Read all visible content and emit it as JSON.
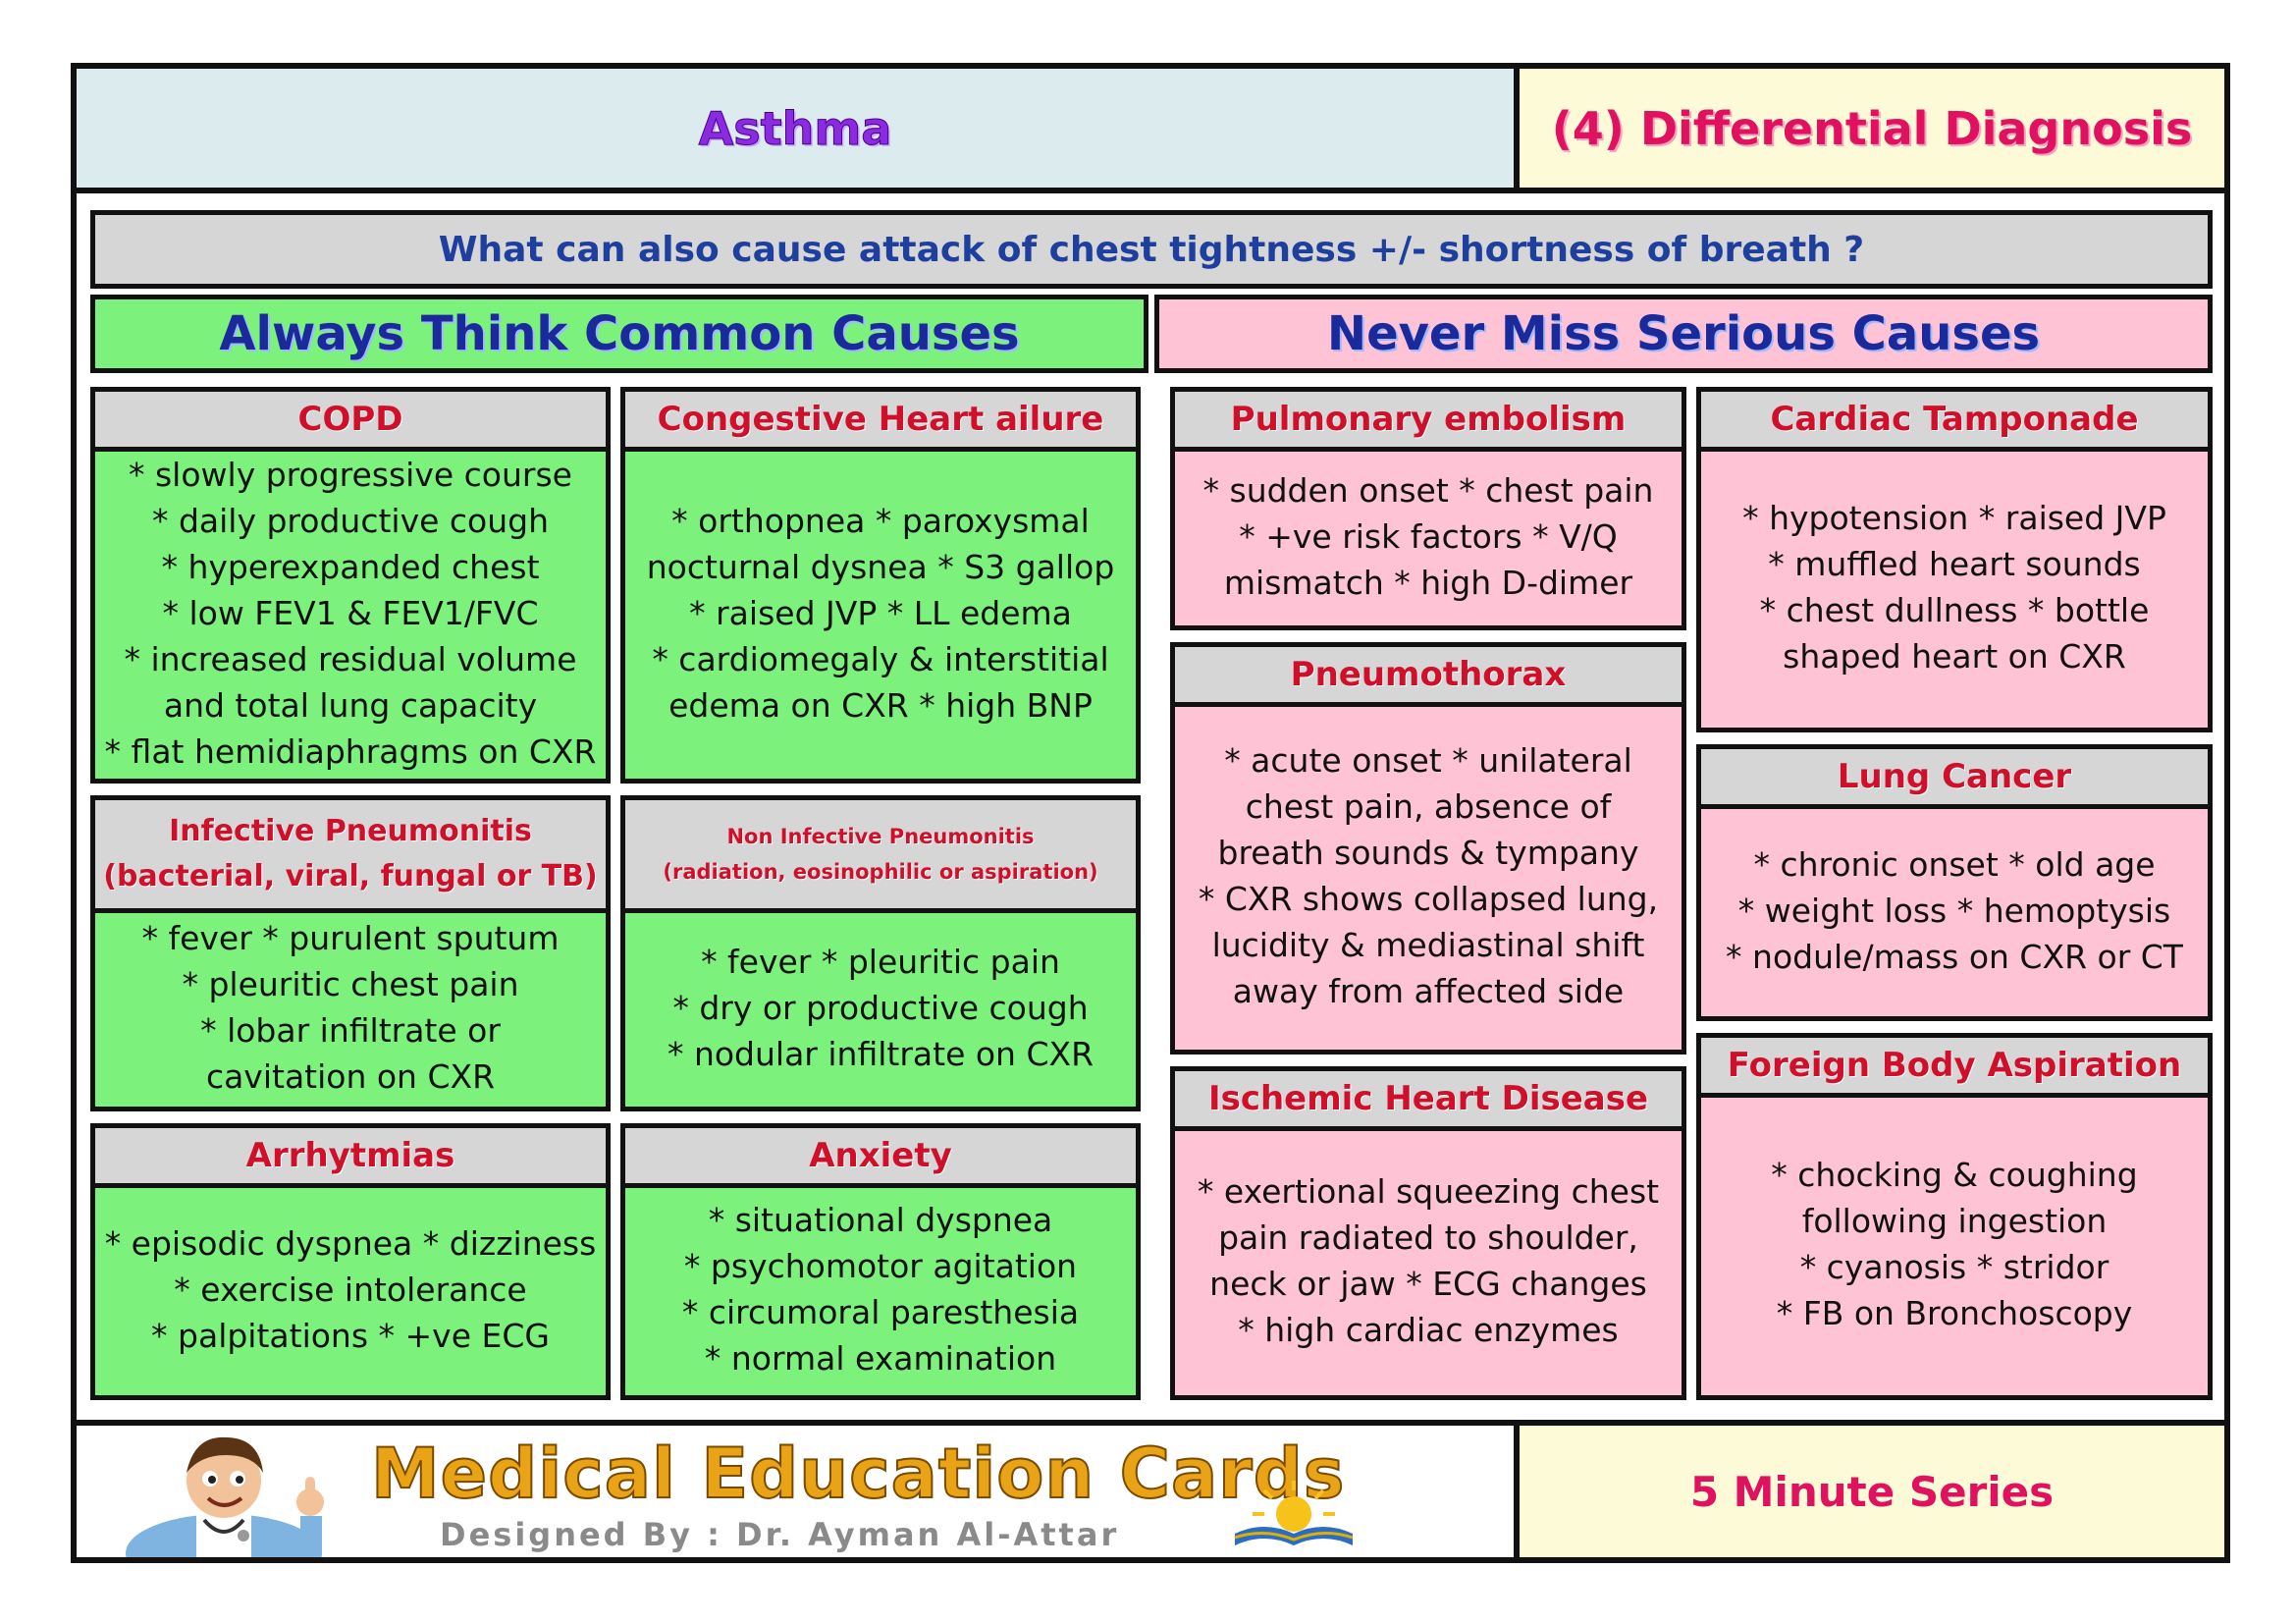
{
  "header": {
    "topic": "Asthma",
    "section": "(4) Differential Diagnosis"
  },
  "question": "What can also cause attack of chest tightness +/- shortness of breath ?",
  "columns": {
    "common": "Always Think Common Causes",
    "serious": "Never Miss Serious Causes"
  },
  "cards": {
    "copd": {
      "title": "COPD",
      "lines": [
        "* slowly progressive course",
        "* daily productive cough",
        "* hyperexpanded chest",
        "* low FEV1 & FEV1/FVC",
        "* increased residual volume",
        "and total lung capacity",
        "* flat hemidiaphragms on CXR"
      ]
    },
    "chf": {
      "title": "Congestive Heart ailure",
      "lines": [
        "* orthopnea * paroxysmal",
        "nocturnal dysnea * S3 gallop",
        "* raised JVP * LL edema",
        "* cardiomegaly & interstitial",
        "edema on CXR * high BNP"
      ]
    },
    "infective": {
      "title": "Infective Pneumonitis",
      "subtitle": "(bacterial, viral, fungal or TB)",
      "lines": [
        "* fever * purulent sputum",
        "* pleuritic chest pain",
        "* lobar infiltrate or",
        "cavitation on CXR"
      ]
    },
    "noninfective": {
      "title": "Non Infective Pneumonitis",
      "subtitle": "(radiation, eosinophilic or aspiration)",
      "lines": [
        "* fever * pleuritic pain",
        "* dry or productive cough",
        "* nodular infiltrate on CXR"
      ]
    },
    "arrhythmias": {
      "title": "Arrhytmias",
      "lines": [
        "* episodic dyspnea * dizziness",
        "* exercise intolerance",
        "* palpitations * +ve ECG"
      ]
    },
    "anxiety": {
      "title": "Anxiety",
      "lines": [
        "* situational dyspnea",
        "* psychomotor agitation",
        "* circumoral paresthesia",
        "* normal examination"
      ]
    },
    "pe": {
      "title": "Pulmonary embolism",
      "lines": [
        "* sudden onset * chest pain",
        "* +ve risk factors * V/Q",
        "mismatch * high D-dimer"
      ]
    },
    "tamponade": {
      "title": "Cardiac Tamponade",
      "lines": [
        "* hypotension * raised JVP",
        "* muffled heart sounds",
        "* chest dullness * bottle",
        "shaped heart on CXR"
      ]
    },
    "pneumothorax": {
      "title": "Pneumothorax",
      "lines": [
        "* acute onset * unilateral",
        "chest pain, absence of",
        "breath sounds & tympany",
        "* CXR shows collapsed lung,",
        "lucidity & mediastinal shift",
        "away from affected side"
      ]
    },
    "lungcancer": {
      "title": "Lung Cancer",
      "lines": [
        "* chronic onset * old age",
        "* weight loss * hemoptysis",
        "* nodule/mass on CXR or CT"
      ]
    },
    "ihd": {
      "title": "Ischemic Heart Disease",
      "lines": [
        "* exertional squeezing chest",
        "pain radiated to shoulder,",
        "neck or jaw * ECG changes",
        "* high cardiac enzymes"
      ]
    },
    "fba": {
      "title": "Foreign Body Aspiration",
      "lines": [
        "* chocking & coughing",
        "following ingestion",
        "* cyanosis * stridor",
        "* FB on Bronchoscopy"
      ]
    }
  },
  "footer": {
    "brand": "Medical Education Cards",
    "designer": "Designed By : Dr. Ayman Al-Attar",
    "series": "5 Minute Series",
    "watermark": "Medical Education Cards"
  }
}
